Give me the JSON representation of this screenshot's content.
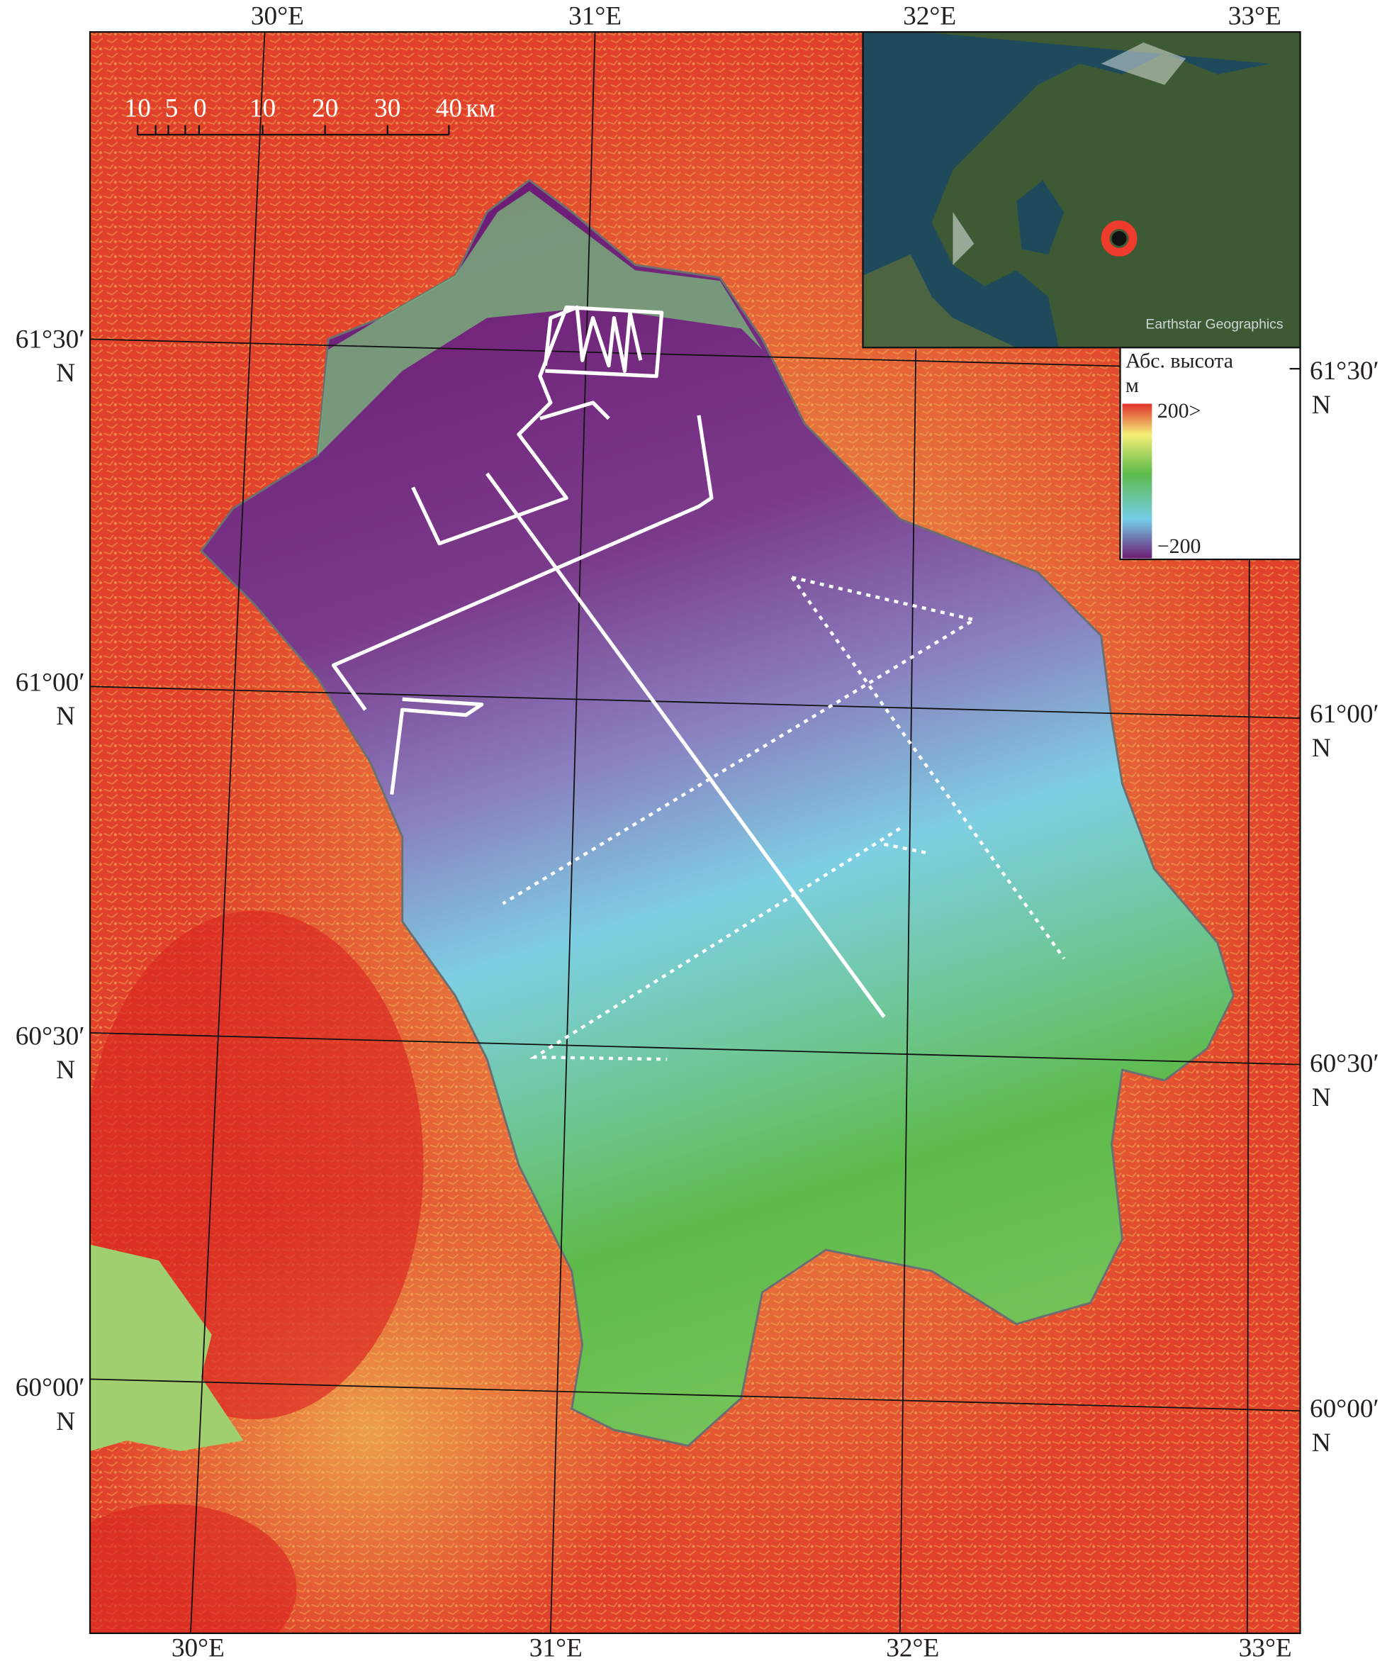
{
  "colors": {
    "terrain_high": "#e0302a",
    "terrain_mid": "#f2e07a",
    "lake_shallow": "#5dbb4a",
    "lake_mid": "#7ecfe3",
    "lake_deep": "#6d1b74",
    "track": "#ffffff",
    "inset_marker": "#ef3b2c"
  },
  "graticule": {
    "top_lon": [
      "30°E",
      "31°E",
      "32°E",
      "33°E"
    ],
    "bottom_lon": [
      "30°E",
      "31°E",
      "32°E",
      "33°E"
    ],
    "left_lat": [
      {
        "deg": "61°30′",
        "hem": "N"
      },
      {
        "deg": "61°00′",
        "hem": "N"
      },
      {
        "deg": "60°30′",
        "hem": "N"
      },
      {
        "deg": "60°00′",
        "hem": "N"
      }
    ],
    "right_lat": [
      {
        "deg": "61°30′",
        "hem": "N"
      },
      {
        "deg": "61°00′",
        "hem": "N"
      },
      {
        "deg": "60°30′",
        "hem": "N"
      },
      {
        "deg": "60°00′",
        "hem": "N"
      }
    ]
  },
  "scale_bar": {
    "labels": [
      "10",
      "5",
      "0",
      "10",
      "20",
      "30",
      "40"
    ],
    "unit": "км"
  },
  "legend": {
    "title": "Абс. высота",
    "unit": "м",
    "max_label": "200>",
    "min_label": "−200",
    "range_m": [
      -200,
      200
    ]
  },
  "inset": {
    "attribution": "Earthstar Geographics",
    "marker_icon": "location-circle-icon"
  },
  "tracks": {
    "solid_icon": "survey-line-solid",
    "dotted_icon": "survey-line-dotted"
  }
}
